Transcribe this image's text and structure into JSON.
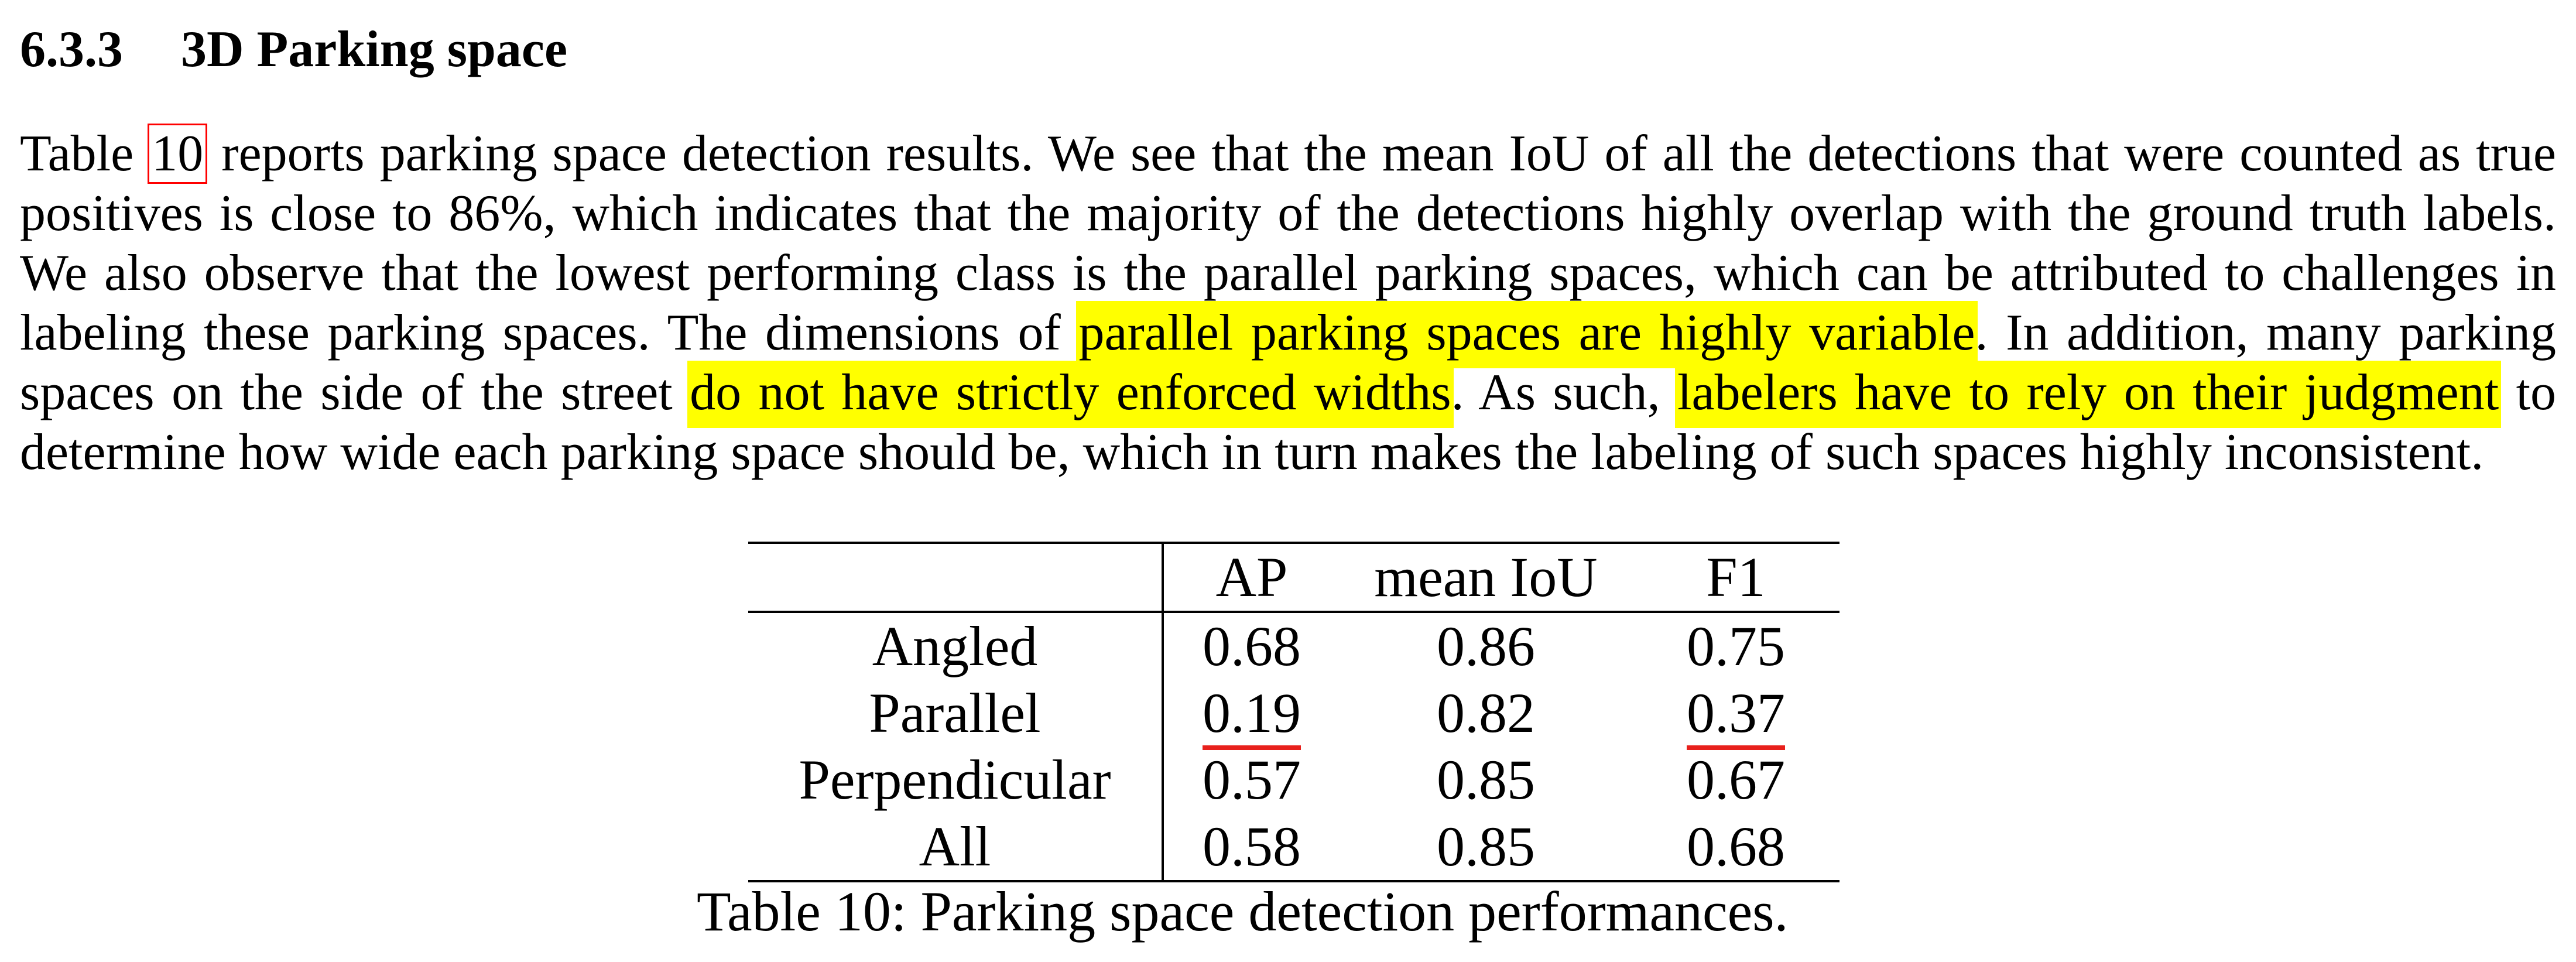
{
  "section": {
    "number": "6.3.3",
    "title": "3D Parking space"
  },
  "paragraph": {
    "l1_pre": "Table ",
    "l1_ref": "10",
    "l1_post": " reports parking space detection results. We see that the mean IoU of all the detections that were counted as true",
    "l2": "positives is close to 86%, which indicates that the majority of the detections highly overlap with the ground truth labels.",
    "l3": "We also observe that the lowest performing class is the parallel parking spaces, which can be attributed to challenges in",
    "l4_pre": "labeling these parking spaces. The dimensions of ",
    "l4_hl": "parallel parking spaces are highly variable",
    "l4_post": ". In addition, many parking",
    "l5_pre": "spaces on the side of the street ",
    "l5_hl1": "do not have strictly enforced widths",
    "l5_mid": ". As such, ",
    "l5_hl2": "labelers have to rely on their judgment",
    "l5_post": " to",
    "l6": "determine how wide each parking space should be, which in turn makes the labeling of such spaces highly inconsistent."
  },
  "table": {
    "headers": [
      "",
      "AP",
      "mean IoU",
      "F1"
    ],
    "rows": [
      {
        "label": "Angled",
        "ap": "0.68",
        "iou": "0.86",
        "f1": "0.75"
      },
      {
        "label": "Parallel",
        "ap": "0.19",
        "iou": "0.82",
        "f1": "0.37"
      },
      {
        "label": "Perpendicular",
        "ap": "0.57",
        "iou": "0.85",
        "f1": "0.67"
      },
      {
        "label": "All",
        "ap": "0.58",
        "iou": "0.85",
        "f1": "0.68"
      }
    ],
    "caption": "Table 10: Parking space detection performances."
  },
  "colors": {
    "highlight": "#ffff00",
    "reference_box": "#ff0000",
    "underline_mark": "#e8201c"
  }
}
